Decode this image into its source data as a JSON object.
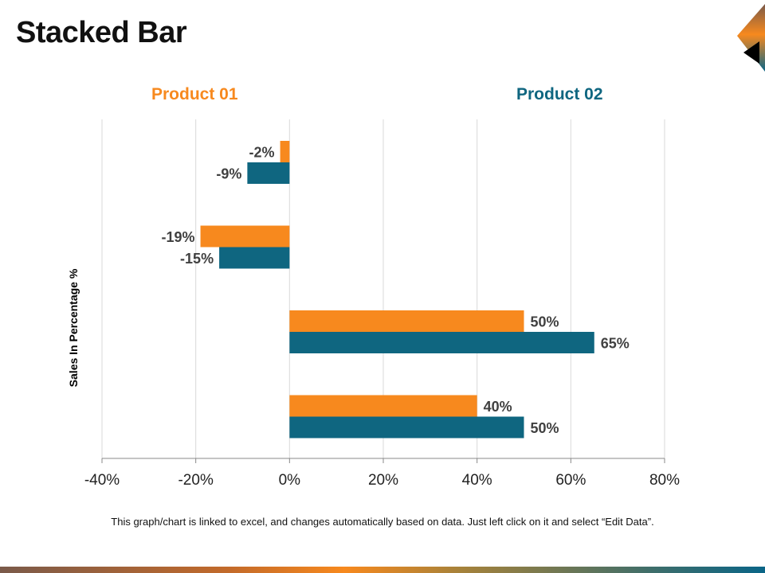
{
  "title": "Stacked Bar",
  "note": "This graph/chart is linked to excel, and changes automatically based on data. Just left click on it and select “Edit Data”.",
  "colors": {
    "product01": "#f7891e",
    "product02": "#0f6680",
    "grid": "#d9d9d9"
  },
  "chart_data": {
    "type": "bar",
    "orientation": "horizontal",
    "title": "",
    "ylabel": "Sales In Percentage %",
    "xlabel": "",
    "xlim": [
      -40,
      80
    ],
    "xticks": [
      "-40%",
      "-20%",
      "0%",
      "20%",
      "40%",
      "60%",
      "80%"
    ],
    "xtick_values": [
      -40,
      -20,
      0,
      20,
      40,
      60,
      80
    ],
    "grid": true,
    "legend": "top",
    "series": [
      {
        "name": "Product 01",
        "values": [
          -2,
          -19,
          50,
          40
        ],
        "labels": [
          "-2%",
          "-19%",
          "50%",
          "40%"
        ]
      },
      {
        "name": "Product 02",
        "values": [
          -9,
          -15,
          65,
          50
        ],
        "labels": [
          "-9%",
          "-15%",
          "65%",
          "50%"
        ]
      }
    ]
  }
}
